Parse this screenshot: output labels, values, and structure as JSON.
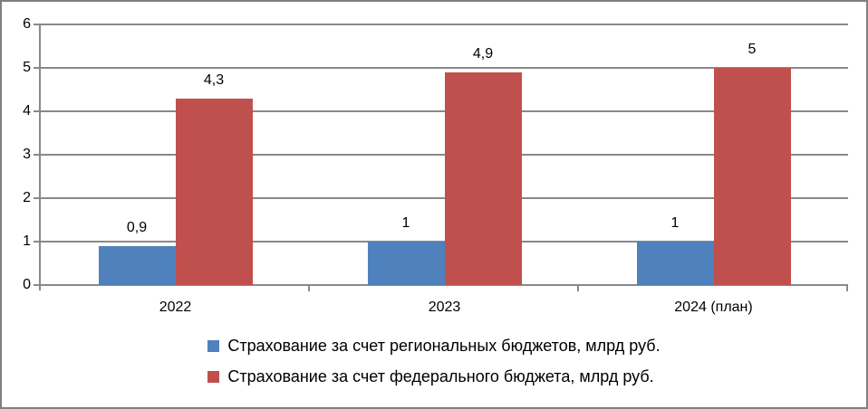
{
  "figure": {
    "background": "#FFFFFF",
    "border_color": "#7F7F7F"
  },
  "chart_data": {
    "type": "bar",
    "title": "",
    "categories": [
      "2022",
      "2023",
      "2024 (план)"
    ],
    "series": [
      {
        "name": "Страхование за счет региональных бюджетов, млрд руб.",
        "color": "#4F81BD",
        "values": [
          0.9,
          1,
          1
        ],
        "data_labels": [
          "0,9",
          "1",
          "1"
        ]
      },
      {
        "name": "Страхование за счет федерального бюджета, млрд руб.",
        "color": "#C0504D",
        "values": [
          4.3,
          4.9,
          5
        ],
        "data_labels": [
          "4,3",
          "4,9",
          "5"
        ]
      }
    ],
    "y_axis": {
      "min": 0,
      "max": 6,
      "step": 1,
      "tick_labels": [
        "0",
        "1",
        "2",
        "3",
        "4",
        "5",
        "6"
      ]
    },
    "x_axis_label": "",
    "y_axis_label": "",
    "grid": true,
    "gridline_color": "#898989",
    "axis_color": "#898989",
    "text_color": "#000000",
    "legend_position": "bottom"
  }
}
